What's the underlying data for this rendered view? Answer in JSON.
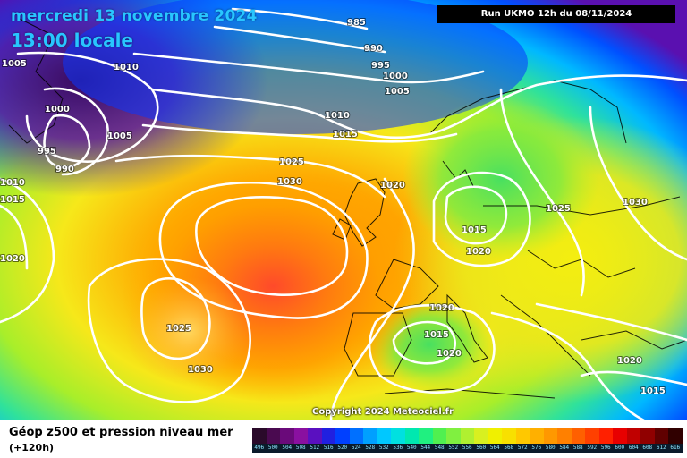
{
  "header": {
    "date": "mercredi 13 novembre 2024",
    "time": "13:00 locale",
    "run_info": "Run UKMO 12h du 08/11/2024"
  },
  "map": {
    "copyright": "Copyright 2024 Meteociel.fr",
    "isobar_labels": [
      "985",
      "990",
      "995",
      "1000",
      "1005",
      "1010",
      "1015",
      "1020",
      "1025",
      "1030",
      "990",
      "995",
      "1000",
      "1005",
      "1010",
      "1005",
      "1010",
      "1015",
      "1020",
      "1025",
      "1030",
      "1015",
      "1020",
      "1020",
      "1015",
      "1020",
      "1025",
      "1030",
      "1020",
      "1015",
      "1010",
      "1020",
      "1020",
      "1015",
      "1020",
      "1005",
      "1000",
      "1010",
      "1015",
      "1020"
    ]
  },
  "legend": {
    "title": "Géop z500 et pression niveau mer",
    "subtitle": "(+120h)",
    "scale_labels": [
      "496",
      "500",
      "504",
      "508",
      "512",
      "516",
      "520",
      "524",
      "528",
      "532",
      "536",
      "540",
      "544",
      "548",
      "552",
      "556",
      "560",
      "564",
      "568",
      "572",
      "576",
      "580",
      "584",
      "588",
      "592",
      "596",
      "600",
      "604",
      "608",
      "612",
      "616"
    ],
    "scale_colors": [
      "#2a0a2a",
      "#4a0a50",
      "#6a0a7a",
      "#8a10a0",
      "#5a10c0",
      "#2020e0",
      "#0040ff",
      "#0070ff",
      "#00a0ff",
      "#00c8ff",
      "#00e0e0",
      "#00e8b0",
      "#20f080",
      "#50f050",
      "#80f040",
      "#b0f030",
      "#d8f020",
      "#f0f000",
      "#f8e000",
      "#ffc800",
      "#ffb000",
      "#ff9800",
      "#ff8000",
      "#ff6000",
      "#ff4000",
      "#ff2000",
      "#e80000",
      "#c00000",
      "#900000",
      "#600000",
      "#300000"
    ]
  }
}
